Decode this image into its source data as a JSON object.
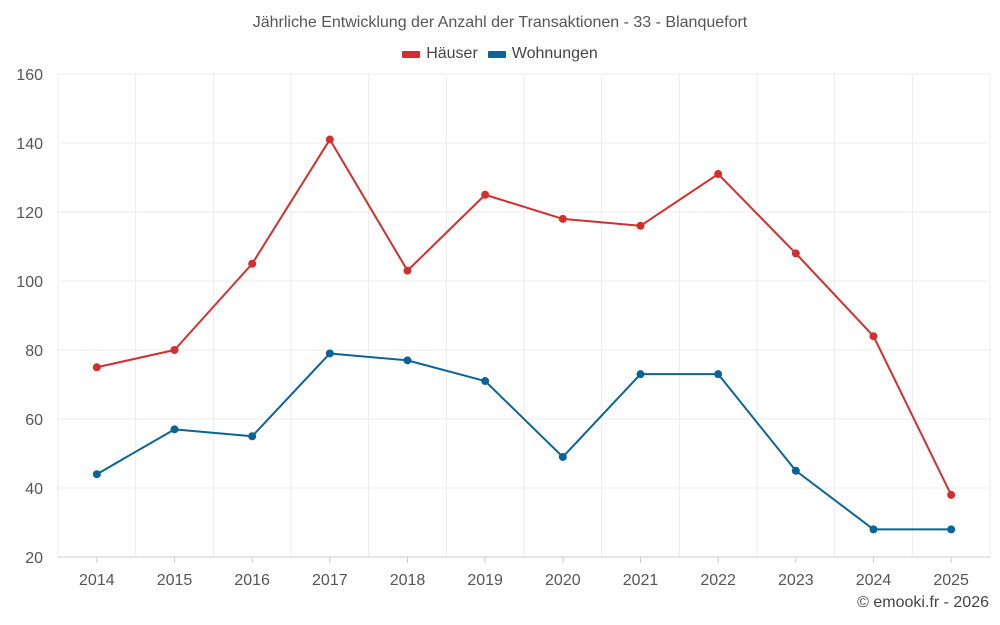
{
  "chart_data": {
    "type": "line",
    "title": "Jährliche Entwicklung der Anzahl der Transaktionen - 33 - Blanquefort",
    "categories": [
      "2014",
      "2015",
      "2016",
      "2017",
      "2018",
      "2019",
      "2020",
      "2021",
      "2022",
      "2023",
      "2024",
      "2025"
    ],
    "series": [
      {
        "name": "Häuser",
        "color": "#d32f2f",
        "values": [
          75,
          80,
          105,
          141,
          103,
          125,
          118,
          116,
          131,
          108,
          84,
          38
        ]
      },
      {
        "name": "Wohnungen",
        "color": "#0a6496",
        "values": [
          44,
          57,
          55,
          79,
          77,
          71,
          49,
          73,
          73,
          45,
          28,
          28
        ]
      }
    ],
    "ylim": [
      20,
      160
    ],
    "yticks": [
      20,
      40,
      60,
      80,
      100,
      120,
      140,
      160
    ],
    "grid": true,
    "legend": "top-center",
    "xlabel": "",
    "ylabel": ""
  },
  "credit": "© emooki.fr - 2026"
}
